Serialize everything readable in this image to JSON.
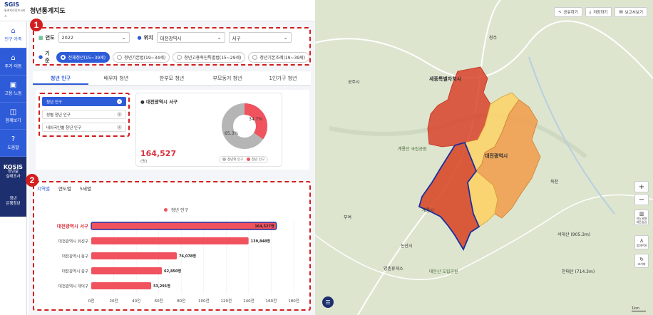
{
  "app": {
    "logo": "SGIS",
    "logo_sub": "통계지리정보서비스",
    "title": "청년통계지도"
  },
  "sidebar": {
    "items": [
      {
        "label": "인구·가족",
        "icon": "people-icon"
      },
      {
        "label": "주거·이동",
        "icon": "house-icon"
      },
      {
        "label": "고용·노동",
        "icon": "work-icon"
      },
      {
        "label": "함께보기",
        "icon": "compare-icon"
      },
      {
        "label": "도움말",
        "icon": "help-icon"
      }
    ],
    "kosis": {
      "title": "KOSIS",
      "line1": "청년삶",
      "line2": "실태조사"
    },
    "bank": {
      "line1": "청년",
      "line2": "은행청년"
    }
  },
  "filters": {
    "year_label": "연도",
    "year_value": "2022",
    "location_label": "위치",
    "sido_value": "대전광역시",
    "sigungu_value": "서구",
    "basis_label": "기준",
    "radios": [
      "전체청년(15~39세)",
      "청년기본법(19~34세)",
      "청년고용촉진특별법(15~29세)",
      "청년기본조례(19~39세)"
    ]
  },
  "tabs": [
    "청년 인구",
    "배우자 청년",
    "한부모 청년",
    "부모동거 청년",
    "1인가구 청년"
  ],
  "sublist": [
    "청년 인구",
    "성별 청년 인구",
    "내외국인별 청년 인구"
  ],
  "stat": {
    "region": "대전광역시 서구",
    "value": "164,527",
    "unit": "(명)",
    "pie": {
      "youth_pct": "34.7%",
      "other_pct": "65.3%",
      "youth_label": "청년 인구",
      "other_label": "청년외 인구"
    }
  },
  "subtabs": [
    "지역별",
    "연도별",
    "5세별"
  ],
  "colors": {
    "accent": "#2e5bd8",
    "bar": "#f0525e",
    "highlight": "#d8323c"
  },
  "chart_data": {
    "type": "bar",
    "orientation": "horizontal",
    "categories": [
      "대전광역시 서구",
      "대전광역시 유성구",
      "대전광역시 동구",
      "대전광역시 중구",
      "대전광역시 대덕구"
    ],
    "values": [
      164527,
      139848,
      76078,
      62850,
      53291
    ],
    "value_labels": [
      "164,527명",
      "139,848명",
      "76,078명",
      "62,850명",
      "53,291명"
    ],
    "series": [
      {
        "name": "청년 인구",
        "values": [
          164527,
          139848,
          76078,
          62850,
          53291
        ]
      }
    ],
    "xticks": [
      "0천",
      "20천",
      "40천",
      "60천",
      "80천",
      "100천",
      "120천",
      "140천",
      "160천",
      "180천"
    ],
    "xlim": [
      0,
      180000
    ],
    "highlight": "대전광역시 서구",
    "legend": "top-center"
  },
  "map": {
    "buttons": [
      "공유하기",
      "저장하기",
      "보고서보기"
    ],
    "zoom_in": "+",
    "zoom_out": "−",
    "tools": [
      "지도유형 버튼숨김",
      "범이POI",
      "초기화"
    ],
    "labels": [
      "세종특별자치시",
      "계룡산 국립공원",
      "대전광역시",
      "논산시",
      "양촌휴게소",
      "대둔산 도립공원",
      "계룡시",
      "부여",
      "청주",
      "서대산 (905.3m)",
      "천태산 (714.3m)",
      "공주시",
      "옥천"
    ],
    "scale": "1km"
  },
  "badges": [
    "1",
    "2"
  ]
}
